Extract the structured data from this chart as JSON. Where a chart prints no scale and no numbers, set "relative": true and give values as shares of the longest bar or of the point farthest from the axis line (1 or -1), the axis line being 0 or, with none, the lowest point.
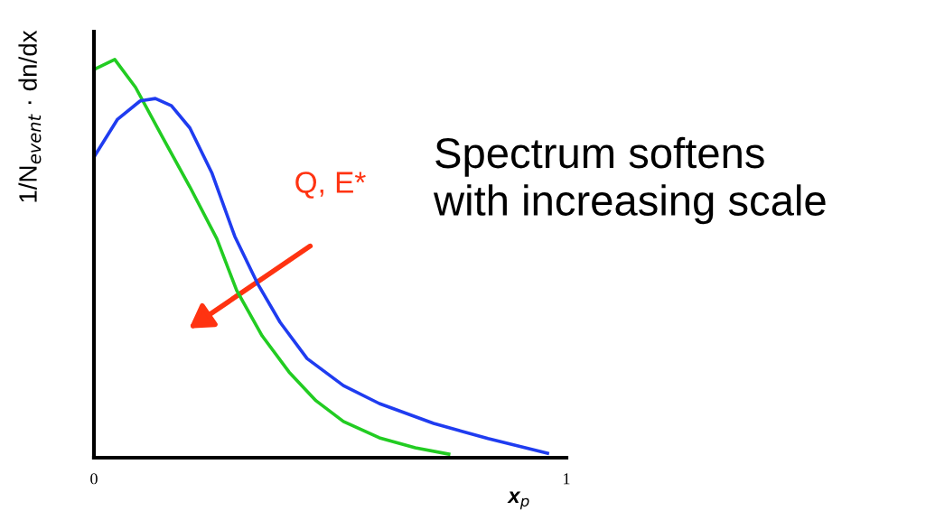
{
  "chart_data": {
    "type": "line",
    "relative": true,
    "xlabel": "x$_{p}$",
    "ylabel": "1/N$_{event}$ · dn/dx",
    "xlim": [
      0,
      1
    ],
    "xticks": [
      0,
      1
    ],
    "grid": false,
    "legend": false,
    "marker": "none",
    "line_style": "solid",
    "annotations": [
      "Q, E*",
      "Spectrum softens\nwith increasing scale"
    ],
    "series": [
      {
        "color": "#22cc22",
        "x": [
          0,
          0.044,
          0.088,
          0.145,
          0.203,
          0.26,
          0.302,
          0.356,
          0.413,
          0.47,
          0.528,
          0.604,
          0.68,
          0.751
        ],
        "values": [
          0.975,
          1.0,
          0.93,
          0.805,
          0.68,
          0.55,
          0.42,
          0.306,
          0.215,
          0.143,
          0.091,
          0.05,
          0.025,
          0.009
        ]
      },
      {
        "color": "#1f3cf0",
        "x": [
          0,
          0.05,
          0.098,
          0.13,
          0.164,
          0.203,
          0.25,
          0.298,
          0.346,
          0.394,
          0.451,
          0.528,
          0.604,
          0.719,
          0.834,
          0.96
        ],
        "values": [
          0.755,
          0.85,
          0.896,
          0.902,
          0.884,
          0.828,
          0.714,
          0.556,
          0.438,
          0.34,
          0.249,
          0.181,
          0.136,
          0.086,
          0.048,
          0.011
        ]
      }
    ]
  }
}
